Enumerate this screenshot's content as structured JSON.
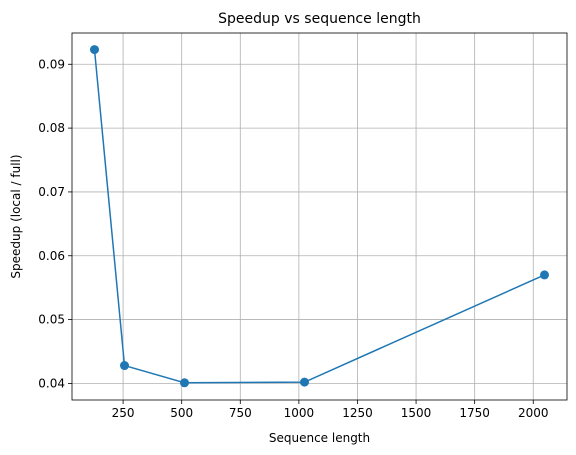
{
  "chart_data": {
    "type": "line",
    "title": "Speedup vs sequence length",
    "xlabel": "Sequence length",
    "ylabel": "Speedup (local / full)",
    "x": [
      128,
      256,
      512,
      1024,
      2048
    ],
    "series": [
      {
        "values": [
          0.0923,
          0.0428,
          0.0401,
          0.0402,
          0.057
        ],
        "color": "#1f77b4",
        "marker": "circle"
      }
    ],
    "xlim": [
      32,
      2144
    ],
    "ylim": [
      0.0374,
      0.0949
    ],
    "xticks": [
      250,
      500,
      750,
      1000,
      1250,
      1500,
      1750,
      2000
    ],
    "yticks": [
      0.04,
      0.05,
      0.06,
      0.07,
      0.08,
      0.09
    ],
    "xtick_labels": [
      "250",
      "500",
      "750",
      "1000",
      "1250",
      "1500",
      "1750",
      "2000"
    ],
    "ytick_labels": [
      "0.04",
      "0.05",
      "0.06",
      "0.07",
      "0.08",
      "0.09"
    ],
    "grid": true,
    "legend": false
  }
}
